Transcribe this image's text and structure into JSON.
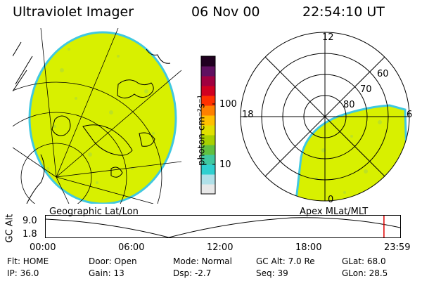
{
  "header": {
    "instrument": "Ultraviolet Imager",
    "date": "06 Nov 00",
    "time": "22:54:10 UT"
  },
  "panels": {
    "left_label": "Geographic Lat/Lon",
    "right_label": "Apex MLat/MLT"
  },
  "colorbar": {
    "unit_label": "photon cm⁻²s⁻¹",
    "tick_labels": [
      "100",
      "10"
    ],
    "colors": [
      "#e8e8e8",
      "#b0e0e8",
      "#30d0d0",
      "#40c8a0",
      "#60c040",
      "#a8d000",
      "#e0e000",
      "#ffc000",
      "#ff8000",
      "#ff3000",
      "#d00020",
      "#a00040",
      "#601060",
      "#200020"
    ]
  },
  "polar": {
    "mlt_labels": {
      "top": "12",
      "left": "18",
      "right": "6",
      "bottom": "0"
    },
    "mlat_labels": [
      "60",
      "70",
      "80"
    ]
  },
  "altitude_plot": {
    "ylabel": "GC Alt",
    "y_ticks": [
      "9.0",
      "1.8"
    ],
    "x_ticks": [
      "00:00",
      "06:00",
      "12:00",
      "18:00",
      "23:59"
    ],
    "current_time_hours": 22.9
  },
  "status": {
    "flt": "Flt: HOME",
    "door": "Door: Open",
    "mode": "Mode: Normal",
    "gc_alt": "GC Alt: 7.0 Re",
    "glat": "GLat: 68.0",
    "ip": "IP: 36.0",
    "gain": "Gain: 13",
    "dsp": "Dsp:   -2.7",
    "seq": "Seq: 39",
    "glon": "GLon: 28.5"
  },
  "colors": {
    "aurora": "#d8f000",
    "aurora_edge": "#40c8e0",
    "marker": "#e00000"
  }
}
